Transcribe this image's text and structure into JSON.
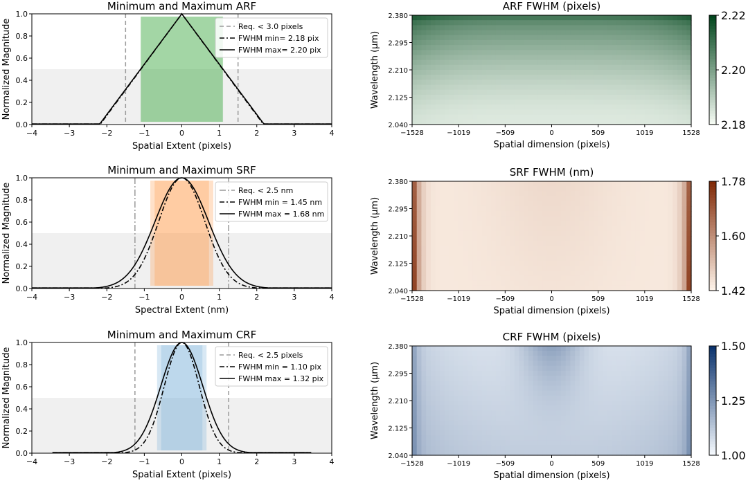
{
  "chart_data": [
    {
      "type": "line",
      "title": "Minimum and Maximum ARF",
      "xlabel": "Spatial Extent (pixels)",
      "ylabel": "Normalized Magnitude",
      "xlim": [
        -4,
        4
      ],
      "ylim": [
        0,
        1
      ],
      "xticks": [
        "−4",
        "−3",
        "−2",
        "−1",
        "0",
        "1",
        "2",
        "3",
        "4"
      ],
      "yticks": [
        "0.0",
        "0.2",
        "0.4",
        "0.6",
        "0.8",
        "1.0"
      ],
      "color": "#4caf50",
      "half_max_band": [
        0,
        0.5
      ],
      "fwhm_band_min": [
        -1.09,
        1.09
      ],
      "fwhm_band_max": [
        -1.1,
        1.1
      ],
      "requirement_lines": [
        -1.5,
        1.5
      ],
      "legend": [
        "Req. < 3.0 pixels",
        "FWHM min= 2.18 pix",
        "FWHM max= 2.20 pix"
      ],
      "series": [
        {
          "name": "FWHM min= 2.18 pix",
          "style": "dashdot",
          "shape": "triangle",
          "fwhm": 2.18,
          "x_range": [
            -4,
            4
          ]
        },
        {
          "name": "FWHM max= 2.20 pix",
          "style": "solid",
          "shape": "triangle",
          "fwhm": 2.2,
          "x_range": [
            -4,
            4
          ]
        }
      ]
    },
    {
      "type": "line",
      "title": "Minimum and Maximum SRF",
      "xlabel": "Spectral Extent (nm)",
      "ylabel": "Normalized Magnitude",
      "xlim": [
        -4,
        4
      ],
      "ylim": [
        0,
        1
      ],
      "xticks": [
        "−4",
        "−3",
        "−2",
        "−1",
        "0",
        "1",
        "2",
        "3",
        "4"
      ],
      "yticks": [
        "0.0",
        "0.2",
        "0.4",
        "0.6",
        "0.8",
        "1.0"
      ],
      "color": "#ff9a4d",
      "half_max_band": [
        0,
        0.5
      ],
      "fwhm_band_min": [
        -0.725,
        0.725
      ],
      "fwhm_band_max": [
        -0.84,
        0.84
      ],
      "requirement_lines": [
        -1.25,
        1.25
      ],
      "legend": [
        "Req. < 2.5 nm",
        "FWHM min = 1.45 nm",
        "FWHM max = 1.68 nm"
      ],
      "series": [
        {
          "name": "FWHM min = 1.45 nm",
          "style": "dashdot",
          "shape": "gauss",
          "fwhm": 1.45,
          "x_range": [
            -4,
            4
          ]
        },
        {
          "name": "FWHM max = 1.68 nm",
          "style": "solid",
          "shape": "gauss",
          "fwhm": 1.68,
          "x_range": [
            -4,
            4
          ]
        }
      ]
    },
    {
      "type": "line",
      "title": "Minimum and Maximum CRF",
      "xlabel": "Spatial Extent (pixels)",
      "ylabel": "Normalized Magnitude",
      "xlim": [
        -4,
        4
      ],
      "ylim": [
        0,
        1
      ],
      "xticks": [
        "−4",
        "−3",
        "−2",
        "−1",
        "0",
        "1",
        "2",
        "3",
        "4"
      ],
      "yticks": [
        "0.0",
        "0.2",
        "0.4",
        "0.6",
        "0.8",
        "1.0"
      ],
      "color": "#7fb3d9",
      "half_max_band": [
        0,
        0.5
      ],
      "fwhm_band_min": [
        -0.55,
        0.55
      ],
      "fwhm_band_max": [
        -0.66,
        0.66
      ],
      "requirement_lines": [
        -1.25,
        1.25
      ],
      "legend": [
        "Req. < 2.5 pixels",
        "FWHM min = 1.10 pix",
        "FWHM max = 1.32 pix"
      ],
      "series": [
        {
          "name": "FWHM min = 1.10 pix",
          "style": "dashdot",
          "shape": "gauss",
          "fwhm": 1.1,
          "x_range": [
            -3.45,
            3.45
          ]
        },
        {
          "name": "FWHM max = 1.32 pix",
          "style": "solid",
          "shape": "gauss",
          "fwhm": 1.32,
          "x_range": [
            -3.45,
            3.45
          ]
        }
      ]
    },
    {
      "type": "heatmap",
      "title": "ARF FWHM (pixels)",
      "xlabel": "Spatial dimension (pixels)",
      "ylabel": "Wavelength (μm)",
      "xlim": [
        -1528,
        1528
      ],
      "ylim": [
        2.04,
        2.38
      ],
      "xticks": [
        "−1528",
        "−1019",
        "−509",
        "0",
        "509",
        "1019",
        "1528"
      ],
      "yticks": [
        "2.040",
        "2.125",
        "2.210",
        "2.295",
        "2.380"
      ],
      "colorbar": {
        "min": 2.18,
        "max": 2.22,
        "ticks": [
          "2.18",
          "2.20",
          "2.22"
        ],
        "light": "#f7fcf5",
        "dark": "#00441b"
      },
      "pattern": "arf"
    },
    {
      "type": "heatmap",
      "title": "SRF FWHM (nm)",
      "xlabel": "Spatial dimension (pixels)",
      "ylabel": "Wavelength (μm)",
      "xlim": [
        -1528,
        1528
      ],
      "ylim": [
        2.04,
        2.38
      ],
      "xticks": [
        "−1528",
        "−1019",
        "−509",
        "0",
        "509",
        "1019",
        "1528"
      ],
      "yticks": [
        "2.040",
        "2.125",
        "2.210",
        "2.295",
        "2.380"
      ],
      "colorbar": {
        "min": 1.42,
        "max": 1.78,
        "ticks": [
          "1.42",
          "1.60",
          "1.78"
        ],
        "light": "#fff5eb",
        "dark": "#7f2704"
      },
      "pattern": "srf"
    },
    {
      "type": "heatmap",
      "title": "CRF FWHM (pixels)",
      "xlabel": "Spatial dimension (pixels)",
      "ylabel": "Wavelength (μm)",
      "xlim": [
        -1528,
        1528
      ],
      "ylim": [
        2.04,
        2.38
      ],
      "xticks": [
        "−1528",
        "−1019",
        "−509",
        "0",
        "509",
        "1019",
        "1528"
      ],
      "yticks": [
        "2.040",
        "2.125",
        "2.210",
        "2.295",
        "2.380"
      ],
      "colorbar": {
        "min": 1.0,
        "max": 1.5,
        "ticks": [
          "1.00",
          "1.25",
          "1.50"
        ],
        "light": "#f7fbff",
        "dark": "#08306b"
      },
      "pattern": "crf"
    }
  ]
}
